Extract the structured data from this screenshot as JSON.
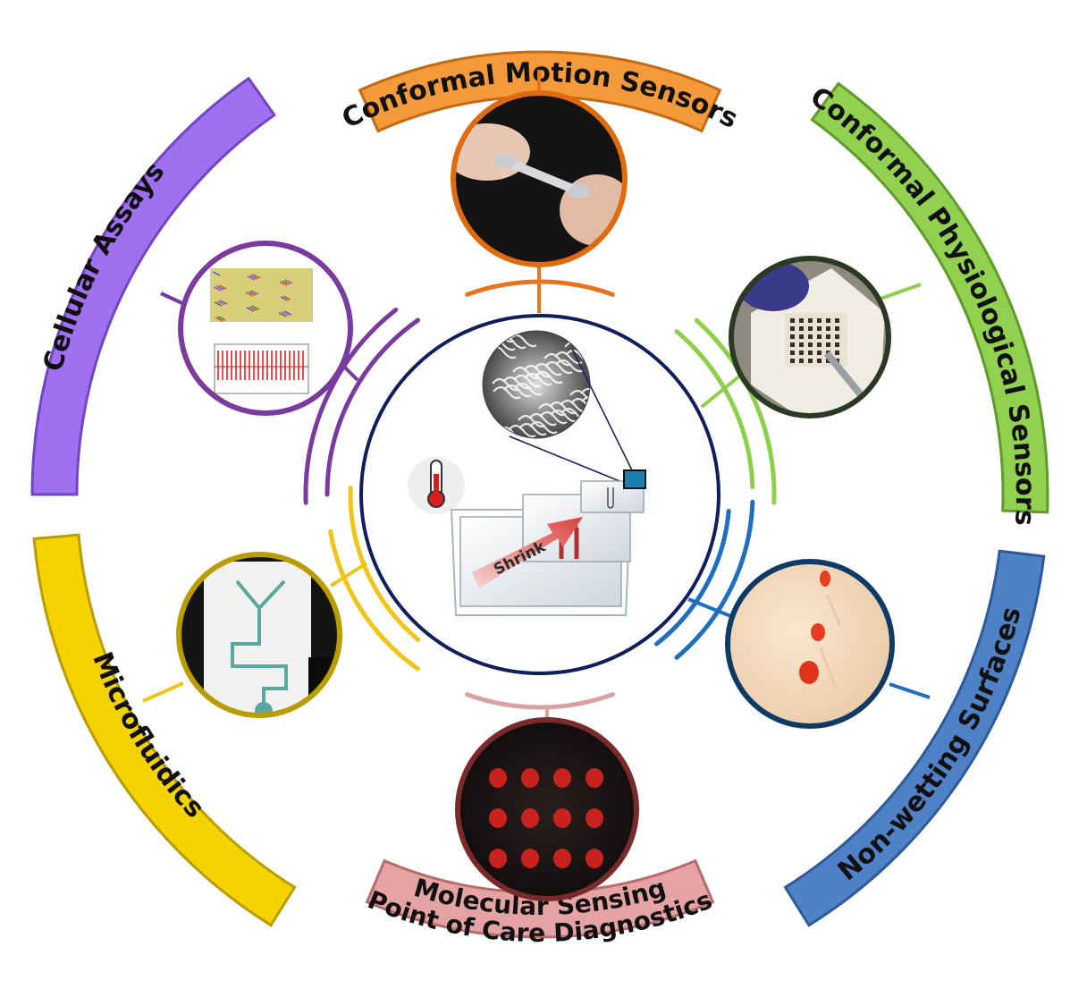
{
  "figure": {
    "center": {
      "arrow_label": "Shrink",
      "icon": "thermometer-icon"
    },
    "applications": [
      {
        "id": "motion",
        "label": "Conformal Motion Sensors",
        "color": "#f59a3a",
        "edge": "#c46a14",
        "ring_color": "#e8731c",
        "photo": "hand-stretching-strip"
      },
      {
        "id": "physio",
        "label": "Conformal Physiological Sensors",
        "color": "#92d050",
        "edge": "#5f9a2a",
        "ring_color": "#8cd04a",
        "photo": "electrode-array-patch"
      },
      {
        "id": "nonwetting",
        "label": "Non-wetting Surfaces",
        "color": "#4f81c7",
        "edge": "#2d5a99",
        "ring_color": "#1f6fc0",
        "photo": "rolling-droplets"
      },
      {
        "id": "molecular",
        "label_line1": "Molecular Sensing",
        "label_line2": "Point of Care Diagnostics",
        "color": "#e6a3a3",
        "edge": "#b86c6c",
        "ring_color": "#d9a2a2",
        "photo": "fluorescent-spot-array"
      },
      {
        "id": "micro",
        "label": "Microfluidics",
        "color": "#f5d300",
        "edge": "#b89c00",
        "ring_color": "#f0c419",
        "photo": "y-channel-chip"
      },
      {
        "id": "cellular",
        "label": "Cellular Assays",
        "color": "#a070f0",
        "edge": "#7047c0",
        "ring_color": "#7a3aa0",
        "photo": "cell-signal-plot"
      }
    ]
  }
}
